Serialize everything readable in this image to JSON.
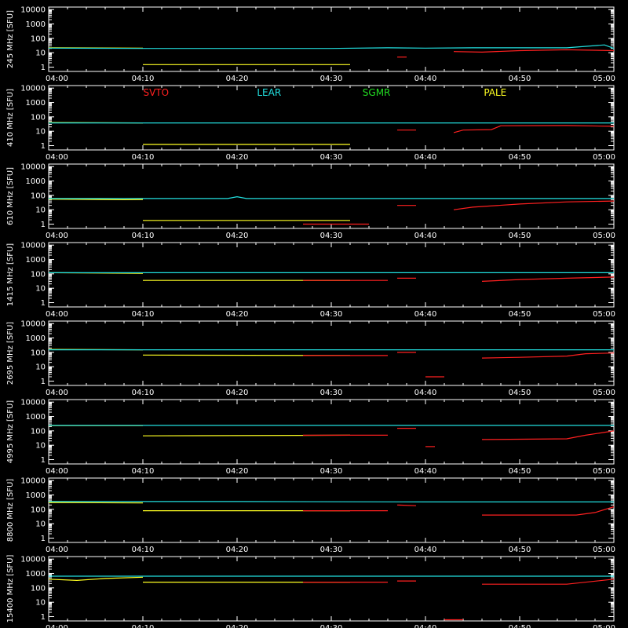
{
  "chart_data": {
    "type": "line",
    "y_scale": "log",
    "ylim": [
      0.5,
      15000
    ],
    "y_ticks": [
      1,
      10,
      100,
      1000,
      10000
    ],
    "y_tick_labels": [
      "1",
      "10",
      "100",
      "1000",
      "10000"
    ],
    "x_range": [
      "04:00",
      "05:00"
    ],
    "x_tick_labels": [
      "04:00",
      "04:10",
      "04:20",
      "04:30",
      "04:40",
      "04:50",
      "05:00"
    ],
    "grid": false,
    "legend_placement": "top, inside second panel",
    "legend": [
      {
        "name": "SVTO",
        "color": "#ff2020"
      },
      {
        "name": "LEAR",
        "color": "#22e0e0"
      },
      {
        "name": "SGMR",
        "color": "#22dd22"
      },
      {
        "name": "PALE",
        "color": "#ffff22"
      }
    ],
    "colors": {
      "SVTO": "#ff2020",
      "LEAR": "#22e0e0",
      "SGMR": "#22dd22",
      "PALE": "#ffff22",
      "axes": "#ffffff",
      "background": "#000000"
    },
    "panels": [
      {
        "ylabel": "245 MHz [SFU]",
        "series": [
          {
            "name": "PALE",
            "points": [
              [
                "04:00",
                22
              ],
              [
                "04:10",
                21
              ]
            ]
          },
          {
            "name": "PALE",
            "points": [
              [
                "04:10",
                1.5
              ],
              [
                "04:32",
                1.5
              ]
            ]
          },
          {
            "name": "LEAR",
            "points": [
              [
                "04:00",
                21
              ],
              [
                "04:10",
                20
              ],
              [
                "04:20",
                20
              ],
              [
                "04:30",
                20
              ],
              [
                "04:36",
                22
              ],
              [
                "04:40",
                21
              ],
              [
                "04:45",
                22
              ],
              [
                "04:50",
                22
              ],
              [
                "04:55",
                22
              ],
              [
                "04:59",
                35
              ],
              [
                "05:00",
                20
              ]
            ]
          },
          {
            "name": "SVTO",
            "points": [
              [
                "04:37",
                5
              ],
              [
                "04:38",
                5
              ]
            ]
          },
          {
            "name": "SVTO",
            "points": [
              [
                "04:43",
                12
              ],
              [
                "04:46",
                11
              ],
              [
                "04:50",
                14
              ],
              [
                "04:55",
                16
              ],
              [
                "05:00",
                14
              ]
            ]
          }
        ]
      },
      {
        "ylabel": "410 MHz [SFU]",
        "series": [
          {
            "name": "PALE",
            "points": [
              [
                "04:00",
                40
              ],
              [
                "04:10",
                38
              ]
            ]
          },
          {
            "name": "PALE",
            "points": [
              [
                "04:10",
                1.2
              ],
              [
                "04:32",
                1.2
              ]
            ]
          },
          {
            "name": "LEAR",
            "points": [
              [
                "04:00",
                38
              ],
              [
                "05:00",
                38
              ]
            ]
          },
          {
            "name": "SVTO",
            "points": [
              [
                "04:37",
                12
              ],
              [
                "04:39",
                12
              ]
            ]
          },
          {
            "name": "SVTO",
            "points": [
              [
                "04:43",
                8
              ],
              [
                "04:44",
                12
              ],
              [
                "04:47",
                13
              ],
              [
                "04:48",
                24
              ],
              [
                "04:55",
                25
              ],
              [
                "05:00",
                22
              ]
            ]
          }
        ]
      },
      {
        "ylabel": "610 MHz [SFU]",
        "series": [
          {
            "name": "PALE",
            "points": [
              [
                "04:00",
                55
              ],
              [
                "04:08",
                50
              ],
              [
                "04:10",
                52
              ]
            ]
          },
          {
            "name": "PALE",
            "points": [
              [
                "04:10",
                1.8
              ],
              [
                "04:32",
                1.8
              ]
            ]
          },
          {
            "name": "LEAR",
            "points": [
              [
                "04:00",
                60
              ],
              [
                "04:19",
                60
              ],
              [
                "04:20",
                80
              ],
              [
                "04:21",
                60
              ],
              [
                "05:00",
                60
              ]
            ]
          },
          {
            "name": "SVTO",
            "points": [
              [
                "04:27",
                1
              ],
              [
                "04:34",
                1
              ]
            ]
          },
          {
            "name": "SVTO",
            "points": [
              [
                "04:37",
                20
              ],
              [
                "04:39",
                20
              ]
            ]
          },
          {
            "name": "SVTO",
            "points": [
              [
                "04:43",
                10
              ],
              [
                "04:45",
                15
              ],
              [
                "04:50",
                25
              ],
              [
                "04:55",
                35
              ],
              [
                "05:00",
                40
              ]
            ]
          }
        ]
      },
      {
        "ylabel": "1415 MHz [SFU]",
        "series": [
          {
            "name": "PALE",
            "points": [
              [
                "04:00",
                120
              ],
              [
                "04:10",
                110
              ]
            ]
          },
          {
            "name": "PALE",
            "points": [
              [
                "04:10",
                35
              ],
              [
                "04:32",
                35
              ]
            ]
          },
          {
            "name": "LEAR",
            "points": [
              [
                "04:00",
                120
              ],
              [
                "05:00",
                120
              ]
            ]
          },
          {
            "name": "SVTO",
            "points": [
              [
                "04:27",
                35
              ],
              [
                "04:36",
                35
              ]
            ]
          },
          {
            "name": "SVTO",
            "points": [
              [
                "04:37",
                50
              ],
              [
                "04:39",
                50
              ]
            ]
          },
          {
            "name": "SVTO",
            "points": [
              [
                "04:46",
                30
              ],
              [
                "04:50",
                40
              ],
              [
                "04:55",
                50
              ],
              [
                "05:00",
                60
              ]
            ]
          }
        ]
      },
      {
        "ylabel": "2695 MHz [SFU]",
        "series": [
          {
            "name": "PALE",
            "points": [
              [
                "04:00",
                160
              ],
              [
                "04:10",
                150
              ]
            ]
          },
          {
            "name": "PALE",
            "points": [
              [
                "04:10",
                65
              ],
              [
                "04:32",
                60
              ]
            ]
          },
          {
            "name": "LEAR",
            "points": [
              [
                "04:00",
                150
              ],
              [
                "05:00",
                150
              ]
            ]
          },
          {
            "name": "SVTO",
            "points": [
              [
                "04:27",
                60
              ],
              [
                "04:36",
                60
              ]
            ]
          },
          {
            "name": "SVTO",
            "points": [
              [
                "04:37",
                100
              ],
              [
                "04:39",
                100
              ]
            ]
          },
          {
            "name": "SVTO",
            "points": [
              [
                "04:40",
                2
              ],
              [
                "04:42",
                2
              ]
            ]
          },
          {
            "name": "SVTO",
            "points": [
              [
                "04:46",
                40
              ],
              [
                "04:50",
                45
              ],
              [
                "04:55",
                55
              ],
              [
                "04:57",
                80
              ],
              [
                "05:00",
                90
              ]
            ]
          }
        ]
      },
      {
        "ylabel": "4995 MHz [SFU]",
        "series": [
          {
            "name": "PALE",
            "points": [
              [
                "04:00",
                230
              ],
              [
                "04:10",
                230
              ]
            ]
          },
          {
            "name": "PALE",
            "points": [
              [
                "04:10",
                45
              ],
              [
                "04:32",
                50
              ]
            ]
          },
          {
            "name": "LEAR",
            "points": [
              [
                "04:00",
                240
              ],
              [
                "05:00",
                240
              ]
            ]
          },
          {
            "name": "SVTO",
            "points": [
              [
                "04:27",
                50
              ],
              [
                "04:36",
                50
              ]
            ]
          },
          {
            "name": "SVTO",
            "points": [
              [
                "04:37",
                150
              ],
              [
                "04:39",
                150
              ]
            ]
          },
          {
            "name": "SVTO",
            "points": [
              [
                "04:40",
                8
              ],
              [
                "04:41",
                8
              ]
            ]
          },
          {
            "name": "SVTO",
            "points": [
              [
                "04:46",
                25
              ],
              [
                "04:55",
                28
              ],
              [
                "04:57",
                50
              ],
              [
                "05:00",
                100
              ]
            ]
          }
        ]
      },
      {
        "ylabel": "8800 MHz [SFU]",
        "series": [
          {
            "name": "PALE",
            "points": [
              [
                "04:00",
                300
              ],
              [
                "04:10",
                280
              ]
            ]
          },
          {
            "name": "PALE",
            "points": [
              [
                "04:10",
                80
              ],
              [
                "04:32",
                80
              ]
            ]
          },
          {
            "name": "LEAR",
            "points": [
              [
                "04:00",
                350
              ],
              [
                "04:20",
                350
              ],
              [
                "04:40",
                330
              ],
              [
                "05:00",
                330
              ]
            ]
          },
          {
            "name": "SVTO",
            "points": [
              [
                "04:27",
                80
              ],
              [
                "04:36",
                80
              ]
            ]
          },
          {
            "name": "SVTO",
            "points": [
              [
                "04:37",
                200
              ],
              [
                "04:39",
                180
              ]
            ]
          },
          {
            "name": "SVTO",
            "points": [
              [
                "04:46",
                40
              ],
              [
                "04:56",
                40
              ],
              [
                "04:58",
                60
              ],
              [
                "05:00",
                150
              ]
            ]
          }
        ]
      },
      {
        "ylabel": "15400 MHz [SFU]",
        "series": [
          {
            "name": "PALE",
            "points": [
              [
                "04:00",
                400
              ],
              [
                "04:03",
                330
              ],
              [
                "04:06",
                450
              ],
              [
                "04:10",
                550
              ]
            ]
          },
          {
            "name": "PALE",
            "points": [
              [
                "04:10",
                250
              ],
              [
                "04:32",
                250
              ]
            ]
          },
          {
            "name": "LEAR",
            "points": [
              [
                "04:00",
                650
              ],
              [
                "05:00",
                650
              ]
            ]
          },
          {
            "name": "SVTO",
            "points": [
              [
                "04:27",
                250
              ],
              [
                "04:36",
                250
              ]
            ]
          },
          {
            "name": "SVTO",
            "points": [
              [
                "04:37",
                300
              ],
              [
                "04:39",
                300
              ]
            ]
          },
          {
            "name": "SVTO",
            "points": [
              [
                "04:42",
                0.6
              ],
              [
                "04:44",
                0.6
              ]
            ]
          },
          {
            "name": "SVTO",
            "points": [
              [
                "04:46",
                180
              ],
              [
                "04:55",
                180
              ],
              [
                "05:00",
                400
              ]
            ]
          }
        ]
      }
    ]
  }
}
